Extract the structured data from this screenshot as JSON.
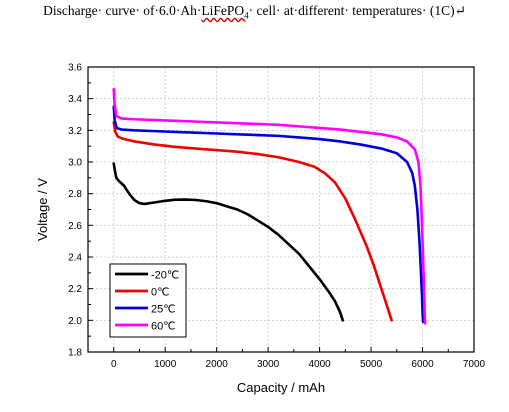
{
  "header": {
    "title_pre": "Discharge· curve· of·6.0·Ah·",
    "title_chem": "LiFePO",
    "title_chem_sub": "4",
    "title_post": "· cell· at·different· temperatures· (1C)",
    "title_mark": "↵"
  },
  "chart_data": {
    "type": "line",
    "title": "Discharge· curve· of·6.0·Ah·LiFePO4· cell· at·different· temperatures· (1C)↵",
    "xlabel": "Capacity / mAh",
    "ylabel": "Voltage / V",
    "xlim": [
      -500,
      7000
    ],
    "ylim": [
      1.8,
      3.6
    ],
    "xticks": [
      "0",
      "1000",
      "2000",
      "3000",
      "4000",
      "5000",
      "6000",
      "7000"
    ],
    "yticks": [
      "1.8",
      "2.0",
      "2.2",
      "2.4",
      "2.6",
      "2.8",
      "3.0",
      "3.2",
      "3.4",
      "3.6"
    ],
    "grid": true,
    "legend_position": "bottom-left",
    "series": [
      {
        "name": "-20℃",
        "color": "#000000",
        "points": [
          [
            0,
            2.99
          ],
          [
            20,
            2.95
          ],
          [
            50,
            2.9
          ],
          [
            100,
            2.88
          ],
          [
            200,
            2.85
          ],
          [
            300,
            2.8
          ],
          [
            400,
            2.76
          ],
          [
            500,
            2.74
          ],
          [
            600,
            2.735
          ],
          [
            800,
            2.745
          ],
          [
            1000,
            2.755
          ],
          [
            1200,
            2.762
          ],
          [
            1400,
            2.763
          ],
          [
            1600,
            2.76
          ],
          [
            1800,
            2.752
          ],
          [
            2000,
            2.74
          ],
          [
            2200,
            2.72
          ],
          [
            2400,
            2.7
          ],
          [
            2600,
            2.67
          ],
          [
            2800,
            2.63
          ],
          [
            3000,
            2.59
          ],
          [
            3200,
            2.54
          ],
          [
            3400,
            2.48
          ],
          [
            3600,
            2.42
          ],
          [
            3800,
            2.34
          ],
          [
            4000,
            2.26
          ],
          [
            4200,
            2.17
          ],
          [
            4300,
            2.12
          ],
          [
            4400,
            2.05
          ],
          [
            4450,
            2.0
          ]
        ]
      },
      {
        "name": "0℃",
        "color": "#ee0000",
        "points": [
          [
            0,
            3.25
          ],
          [
            30,
            3.19
          ],
          [
            80,
            3.16
          ],
          [
            200,
            3.145
          ],
          [
            400,
            3.13
          ],
          [
            800,
            3.11
          ],
          [
            1200,
            3.095
          ],
          [
            1600,
            3.085
          ],
          [
            2000,
            3.075
          ],
          [
            2400,
            3.065
          ],
          [
            2800,
            3.05
          ],
          [
            3200,
            3.03
          ],
          [
            3600,
            3.0
          ],
          [
            3900,
            2.97
          ],
          [
            4100,
            2.93
          ],
          [
            4300,
            2.87
          ],
          [
            4500,
            2.77
          ],
          [
            4700,
            2.63
          ],
          [
            4900,
            2.48
          ],
          [
            5050,
            2.35
          ],
          [
            5200,
            2.2
          ],
          [
            5300,
            2.1
          ],
          [
            5350,
            2.05
          ],
          [
            5400,
            2.0
          ]
        ]
      },
      {
        "name": "25℃",
        "color": "#0000dd",
        "points": [
          [
            0,
            3.35
          ],
          [
            20,
            3.26
          ],
          [
            60,
            3.215
          ],
          [
            150,
            3.205
          ],
          [
            400,
            3.2
          ],
          [
            800,
            3.195
          ],
          [
            1200,
            3.19
          ],
          [
            1600,
            3.185
          ],
          [
            2000,
            3.18
          ],
          [
            2400,
            3.175
          ],
          [
            2800,
            3.17
          ],
          [
            3200,
            3.165
          ],
          [
            3600,
            3.155
          ],
          [
            4000,
            3.145
          ],
          [
            4400,
            3.13
          ],
          [
            4800,
            3.11
          ],
          [
            5200,
            3.085
          ],
          [
            5500,
            3.055
          ],
          [
            5700,
            3.0
          ],
          [
            5800,
            2.93
          ],
          [
            5850,
            2.85
          ],
          [
            5900,
            2.7
          ],
          [
            5940,
            2.5
          ],
          [
            5970,
            2.3
          ],
          [
            5990,
            2.15
          ],
          [
            6000,
            2.05
          ],
          [
            6010,
            1.99
          ]
        ]
      },
      {
        "name": "60℃",
        "color": "#ff00ff",
        "points": [
          [
            0,
            3.46
          ],
          [
            15,
            3.37
          ],
          [
            50,
            3.29
          ],
          [
            150,
            3.275
          ],
          [
            400,
            3.27
          ],
          [
            800,
            3.265
          ],
          [
            1200,
            3.26
          ],
          [
            1600,
            3.255
          ],
          [
            2000,
            3.25
          ],
          [
            2400,
            3.245
          ],
          [
            2800,
            3.24
          ],
          [
            3200,
            3.235
          ],
          [
            3600,
            3.225
          ],
          [
            4000,
            3.215
          ],
          [
            4400,
            3.205
          ],
          [
            4800,
            3.19
          ],
          [
            5200,
            3.175
          ],
          [
            5500,
            3.155
          ],
          [
            5700,
            3.13
          ],
          [
            5850,
            3.08
          ],
          [
            5920,
            3.0
          ],
          [
            5960,
            2.85
          ],
          [
            5990,
            2.6
          ],
          [
            6010,
            2.4
          ],
          [
            6030,
            2.2
          ],
          [
            6040,
            2.05
          ],
          [
            6050,
            1.98
          ]
        ]
      }
    ]
  }
}
